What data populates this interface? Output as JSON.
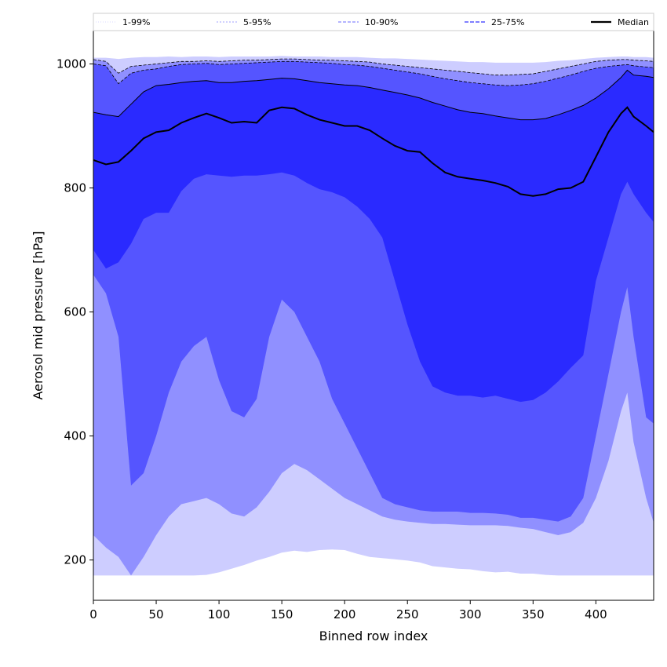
{
  "chart_data": {
    "type": "area",
    "title": "",
    "xlabel": "Binned row index",
    "ylabel": "Aerosol mid pressure [hPa]",
    "xlim": [
      0,
      446
    ],
    "ylim": [
      135,
      1055
    ],
    "x_ticks": [
      0,
      50,
      100,
      150,
      200,
      250,
      300,
      350,
      400
    ],
    "y_ticks": [
      200,
      400,
      600,
      800,
      1000
    ],
    "grid": false,
    "legend_position": "top, above plot (single row)",
    "colors": {
      "band_1_99": "#cdcdff",
      "band_5_95": "#9090ff",
      "band_10_90": "#5555ff",
      "band_25_75": "#2a2aff",
      "median": "#000000"
    },
    "x": [
      0,
      10,
      20,
      30,
      40,
      50,
      60,
      70,
      80,
      90,
      100,
      110,
      120,
      130,
      140,
      150,
      160,
      170,
      180,
      190,
      200,
      210,
      220,
      230,
      240,
      250,
      260,
      270,
      280,
      290,
      300,
      310,
      320,
      330,
      340,
      350,
      360,
      370,
      380,
      390,
      400,
      410,
      420,
      425,
      430,
      440,
      446
    ],
    "series": [
      {
        "name": "1-99%",
        "kind": "band",
        "style": "dotted",
        "lower": [
          175,
          175,
          175,
          175,
          175,
          175,
          175,
          175,
          175,
          176,
          180,
          186,
          192,
          199,
          205,
          212,
          215,
          213,
          216,
          217,
          216,
          210,
          205,
          203,
          201,
          199,
          196,
          190,
          188,
          186,
          185,
          182,
          180,
          181,
          178,
          178,
          176,
          175,
          175,
          175,
          175,
          175,
          175,
          175,
          175,
          175,
          175
        ],
        "upper": [
          1010,
          1010,
          1008,
          1010,
          1011,
          1011,
          1012,
          1011,
          1012,
          1012,
          1011,
          1012,
          1012,
          1012,
          1012,
          1013,
          1012,
          1012,
          1012,
          1011,
          1011,
          1011,
          1010,
          1009,
          1009,
          1008,
          1007,
          1006,
          1005,
          1004,
          1003,
          1003,
          1002,
          1002,
          1002,
          1002,
          1003,
          1005,
          1006,
          1008,
          1010,
          1011,
          1012,
          1012,
          1011,
          1011,
          1010
        ]
      },
      {
        "name": "5-95%",
        "kind": "band",
        "style": "dashed",
        "lower": [
          240,
          220,
          205,
          175,
          205,
          240,
          270,
          290,
          295,
          300,
          290,
          275,
          270,
          285,
          310,
          340,
          355,
          345,
          330,
          315,
          300,
          290,
          280,
          270,
          265,
          262,
          260,
          258,
          258,
          257,
          256,
          256,
          256,
          255,
          252,
          250,
          245,
          240,
          245,
          260,
          300,
          360,
          440,
          470,
          390,
          300,
          260
        ],
        "upper": [
          1007,
          1004,
          985,
          996,
          998,
          1000,
          1002,
          1004,
          1004,
          1005,
          1004,
          1005,
          1006,
          1006,
          1007,
          1008,
          1008,
          1007,
          1006,
          1006,
          1005,
          1004,
          1003,
          1000,
          998,
          996,
          994,
          992,
          990,
          988,
          986,
          984,
          982,
          982,
          983,
          984,
          988,
          992,
          996,
          1000,
          1004,
          1006,
          1007,
          1007,
          1006,
          1005,
          1004
        ]
      },
      {
        "name": "10-90%",
        "kind": "band",
        "style": "dashed",
        "lower": [
          660,
          630,
          560,
          320,
          340,
          400,
          470,
          520,
          545,
          560,
          490,
          440,
          430,
          460,
          560,
          620,
          600,
          560,
          520,
          460,
          420,
          380,
          340,
          300,
          290,
          285,
          280,
          278,
          278,
          278,
          276,
          276,
          275,
          273,
          268,
          268,
          265,
          262,
          270,
          300,
          400,
          500,
          600,
          640,
          560,
          430,
          420
        ],
        "upper": [
          1000,
          997,
          968,
          985,
          990,
          992,
          996,
          999,
          1000,
          1001,
          999,
          1000,
          1001,
          1002,
          1003,
          1004,
          1004,
          1003,
          1002,
          1001,
          999,
          998,
          996,
          993,
          990,
          987,
          984,
          980,
          976,
          973,
          970,
          968,
          966,
          965,
          966,
          968,
          972,
          977,
          982,
          988,
          993,
          996,
          998,
          999,
          997,
          995,
          994
        ]
      },
      {
        "name": "25-75%",
        "kind": "band",
        "style": "dashed",
        "lower": [
          700,
          670,
          680,
          710,
          750,
          760,
          760,
          795,
          815,
          822,
          820,
          818,
          820,
          820,
          822,
          825,
          820,
          808,
          798,
          793,
          785,
          770,
          750,
          720,
          650,
          580,
          520,
          480,
          470,
          465,
          465,
          462,
          465,
          460,
          455,
          458,
          470,
          488,
          510,
          530,
          650,
          720,
          790,
          810,
          790,
          760,
          745
        ]
      },
      {
        "name": "Median",
        "kind": "line",
        "style": "solid",
        "values": [
          845,
          838,
          842,
          860,
          880,
          890,
          893,
          905,
          913,
          920,
          913,
          905,
          907,
          905,
          925,
          930,
          928,
          918,
          910,
          905,
          900,
          900,
          893,
          880,
          868,
          860,
          858,
          840,
          825,
          818,
          815,
          812,
          808,
          802,
          790,
          787,
          790,
          798,
          800,
          810,
          850,
          890,
          920,
          930,
          915,
          900,
          890
        ]
      }
    ],
    "upper_quartile_line": [
      922,
      918,
      915,
      935,
      955,
      965,
      967,
      970,
      972,
      973,
      970,
      970,
      972,
      973,
      975,
      977,
      976,
      973,
      970,
      968,
      966,
      965,
      962,
      958,
      954,
      950,
      945,
      938,
      932,
      926,
      922,
      920,
      916,
      913,
      910,
      910,
      912,
      918,
      925,
      933,
      945,
      960,
      978,
      990,
      982,
      980,
      978
    ]
  }
}
